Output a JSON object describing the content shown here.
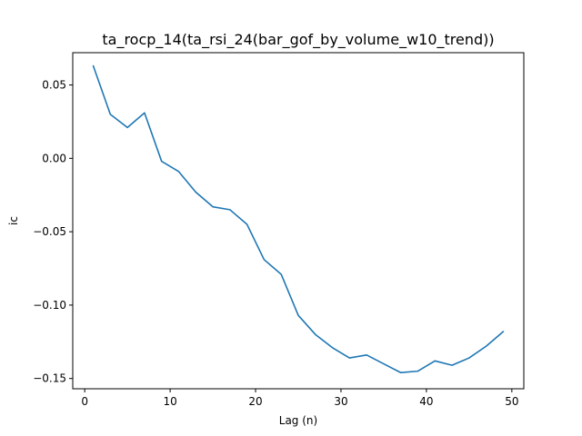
{
  "chart_data": {
    "type": "line",
    "title": "ta_rocp_14(ta_rsi_24(bar_gof_by_volume_w10_trend))",
    "xlabel": "Lag (n)",
    "ylabel": "ic",
    "xlim": [
      -1.4,
      51.4
    ],
    "ylim": [
      -0.157,
      0.072
    ],
    "xticks": [
      0,
      10,
      20,
      30,
      40,
      50
    ],
    "xtick_labels": [
      "0",
      "10",
      "20",
      "30",
      "40",
      "50"
    ],
    "yticks": [
      0.05,
      0.0,
      -0.05,
      -0.1,
      -0.15
    ],
    "ytick_labels": [
      "0.05",
      "0.00",
      "−0.05",
      "−0.10",
      "−0.15"
    ],
    "grid": false,
    "series": [
      {
        "color": "#1f77b4",
        "x": [
          1,
          3,
          5,
          7,
          9,
          11,
          13,
          15,
          17,
          19,
          21,
          23,
          25,
          27,
          29,
          31,
          33,
          35,
          37,
          39,
          41,
          43,
          45,
          47,
          49
        ],
        "y": [
          0.063,
          0.03,
          0.021,
          0.031,
          -0.002,
          -0.009,
          -0.023,
          -0.033,
          -0.035,
          -0.045,
          -0.069,
          -0.079,
          -0.107,
          -0.12,
          -0.129,
          -0.136,
          -0.134,
          -0.14,
          -0.146,
          -0.145,
          -0.138,
          -0.141,
          -0.136,
          -0.128,
          -0.118
        ]
      }
    ]
  }
}
